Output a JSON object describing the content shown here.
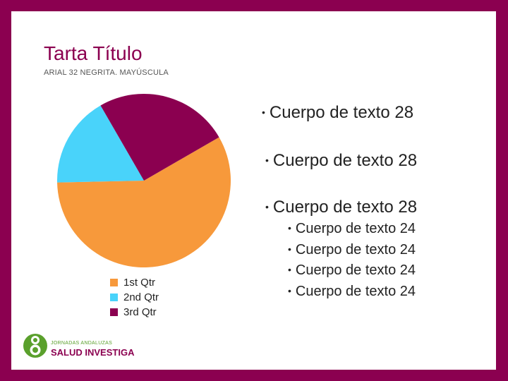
{
  "slide": {
    "title": "Tarta Título",
    "subtitle": "ARIAL 32 NEGRITA. MAYÚSCULA",
    "bullets_28": [
      "Cuerpo de texto 28",
      "Cuerpo de texto 28",
      "Cuerpo de texto 28"
    ],
    "bullets_24": [
      "Cuerpo de texto 24",
      "Cuerpo de texto 24",
      "Cuerpo de texto 24",
      "Cuerpo de texto 24"
    ],
    "bullet_glyph": "•"
  },
  "colors": {
    "frame": "#8b0050",
    "background": "#ffffff"
  },
  "chart_data": {
    "type": "pie",
    "categories": [
      "1st Qtr",
      "2nd Qtr",
      "3rd Qtr"
    ],
    "values": [
      58,
      17,
      25
    ],
    "colors": [
      "#f7993b",
      "#49d3fa",
      "#8b0050"
    ],
    "start_angle_deg": -30,
    "legend_position": "bottom-left"
  },
  "logo": {
    "small_text": "JORNADAS ANDALUZAS",
    "big_text": "SALUD INVESTIGA",
    "color_green": "#5aa02c",
    "color_purple": "#8b0050"
  }
}
